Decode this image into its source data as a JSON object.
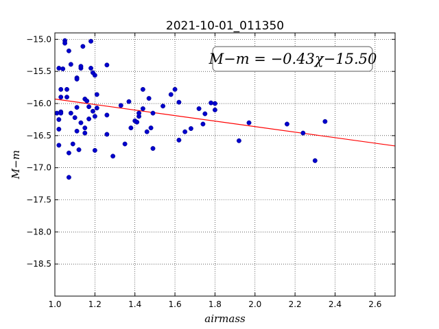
{
  "chart_data": {
    "type": "scatter",
    "title": "2021-10-01_011350",
    "xlabel": "airmass",
    "ylabel": "M−m",
    "xlim": [
      1.0,
      2.7
    ],
    "ylim": [
      -19.0,
      -14.9
    ],
    "y_inverted": true,
    "grid": true,
    "xticks": [
      "1.0",
      "1.2",
      "1.4",
      "1.6",
      "1.8",
      "2.0",
      "2.2",
      "2.4",
      "2.6"
    ],
    "yticks": [
      "−15.0",
      "−15.5",
      "−16.0",
      "−16.5",
      "−17.0",
      "−17.5",
      "−18.0",
      "−18.5"
    ],
    "annotation": "M−m = −0.43χ−15.50",
    "fit": {
      "slope": -0.43,
      "intercept": -15.5,
      "color": "#ff0000"
    },
    "point_color": "#0000cc",
    "points": [
      [
        1.01,
        -16.15
      ],
      [
        1.02,
        -15.45
      ],
      [
        1.02,
        -16.65
      ],
      [
        1.02,
        -16.4
      ],
      [
        1.02,
        -16.25
      ],
      [
        1.03,
        -15.78
      ],
      [
        1.03,
        -15.9
      ],
      [
        1.03,
        -16.13
      ],
      [
        1.03,
        -16.15
      ],
      [
        1.04,
        -15.46
      ],
      [
        1.05,
        -15.02
      ],
      [
        1.05,
        -15.06
      ],
      [
        1.06,
        -15.78
      ],
      [
        1.06,
        -15.9
      ],
      [
        1.07,
        -15.18
      ],
      [
        1.07,
        -16.77
      ],
      [
        1.07,
        -17.15
      ],
      [
        1.08,
        -15.39
      ],
      [
        1.08,
        -16.15
      ],
      [
        1.09,
        -16.63
      ],
      [
        1.1,
        -16.22
      ],
      [
        1.11,
        -15.6
      ],
      [
        1.11,
        -15.62
      ],
      [
        1.11,
        -16.06
      ],
      [
        1.11,
        -16.43
      ],
      [
        1.12,
        -16.72
      ],
      [
        1.13,
        -15.45
      ],
      [
        1.13,
        -15.42
      ],
      [
        1.13,
        -16.3
      ],
      [
        1.14,
        -15.11
      ],
      [
        1.15,
        -16.38
      ],
      [
        1.15,
        -16.46
      ],
      [
        1.15,
        -15.93
      ],
      [
        1.16,
        -15.96
      ],
      [
        1.17,
        -16.24
      ],
      [
        1.17,
        -16.05
      ],
      [
        1.18,
        -15.03
      ],
      [
        1.18,
        -15.45
      ],
      [
        1.19,
        -15.52
      ],
      [
        1.19,
        -16.12
      ],
      [
        1.2,
        -15.56
      ],
      [
        1.2,
        -16.2
      ],
      [
        1.2,
        -16.73
      ],
      [
        1.21,
        -16.07
      ],
      [
        1.21,
        -15.86
      ],
      [
        1.26,
        -15.4
      ],
      [
        1.26,
        -16.18
      ],
      [
        1.26,
        -16.48
      ],
      [
        1.29,
        -16.82
      ],
      [
        1.33,
        -16.03
      ],
      [
        1.35,
        -16.63
      ],
      [
        1.37,
        -15.97
      ],
      [
        1.38,
        -16.38
      ],
      [
        1.4,
        -16.27
      ],
      [
        1.41,
        -16.29
      ],
      [
        1.42,
        -16.2
      ],
      [
        1.42,
        -16.15
      ],
      [
        1.44,
        -15.78
      ],
      [
        1.44,
        -16.08
      ],
      [
        1.46,
        -16.44
      ],
      [
        1.47,
        -15.92
      ],
      [
        1.48,
        -16.38
      ],
      [
        1.49,
        -16.15
      ],
      [
        1.49,
        -16.7
      ],
      [
        1.54,
        -16.04
      ],
      [
        1.58,
        -15.86
      ],
      [
        1.6,
        -15.78
      ],
      [
        1.62,
        -15.98
      ],
      [
        1.62,
        -16.57
      ],
      [
        1.65,
        -16.44
      ],
      [
        1.68,
        -16.39
      ],
      [
        1.72,
        -16.08
      ],
      [
        1.74,
        -16.32
      ],
      [
        1.75,
        -16.16
      ],
      [
        1.78,
        -15.99
      ],
      [
        1.8,
        -16.0
      ],
      [
        1.8,
        -16.1
      ],
      [
        1.92,
        -16.58
      ],
      [
        1.97,
        -16.3
      ],
      [
        2.16,
        -16.32
      ],
      [
        2.24,
        -16.46
      ],
      [
        2.3,
        -16.89
      ],
      [
        2.35,
        -16.28
      ]
    ]
  }
}
